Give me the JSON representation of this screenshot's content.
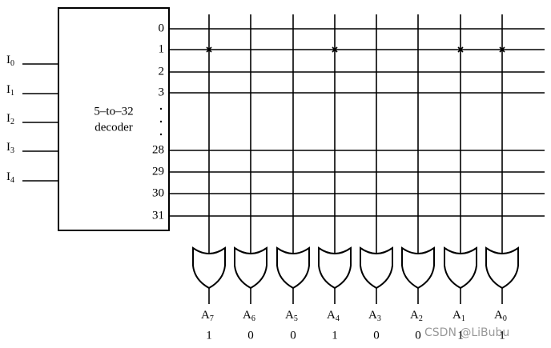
{
  "decoder": {
    "label_line1": "5–to–32",
    "label_line2": "decoder"
  },
  "inputs": [
    {
      "name": "I",
      "sub": "0"
    },
    {
      "name": "I",
      "sub": "1"
    },
    {
      "name": "I",
      "sub": "2"
    },
    {
      "name": "I",
      "sub": "3"
    },
    {
      "name": "I",
      "sub": "4"
    }
  ],
  "decoder_outputs": [
    "0",
    "1",
    "2",
    "3",
    "28",
    "29",
    "30",
    "31"
  ],
  "outputs": [
    {
      "name": "A",
      "sub": "7",
      "value": "1"
    },
    {
      "name": "A",
      "sub": "6",
      "value": "0"
    },
    {
      "name": "A",
      "sub": "5",
      "value": "0"
    },
    {
      "name": "A",
      "sub": "4",
      "value": "1"
    },
    {
      "name": "A",
      "sub": "3",
      "value": "0"
    },
    {
      "name": "A",
      "sub": "2",
      "value": "0"
    },
    {
      "name": "A",
      "sub": "1",
      "value": "1"
    },
    {
      "name": "A",
      "sub": "0",
      "value": "1"
    }
  ],
  "watermark": "CSDN @LiBubu"
}
